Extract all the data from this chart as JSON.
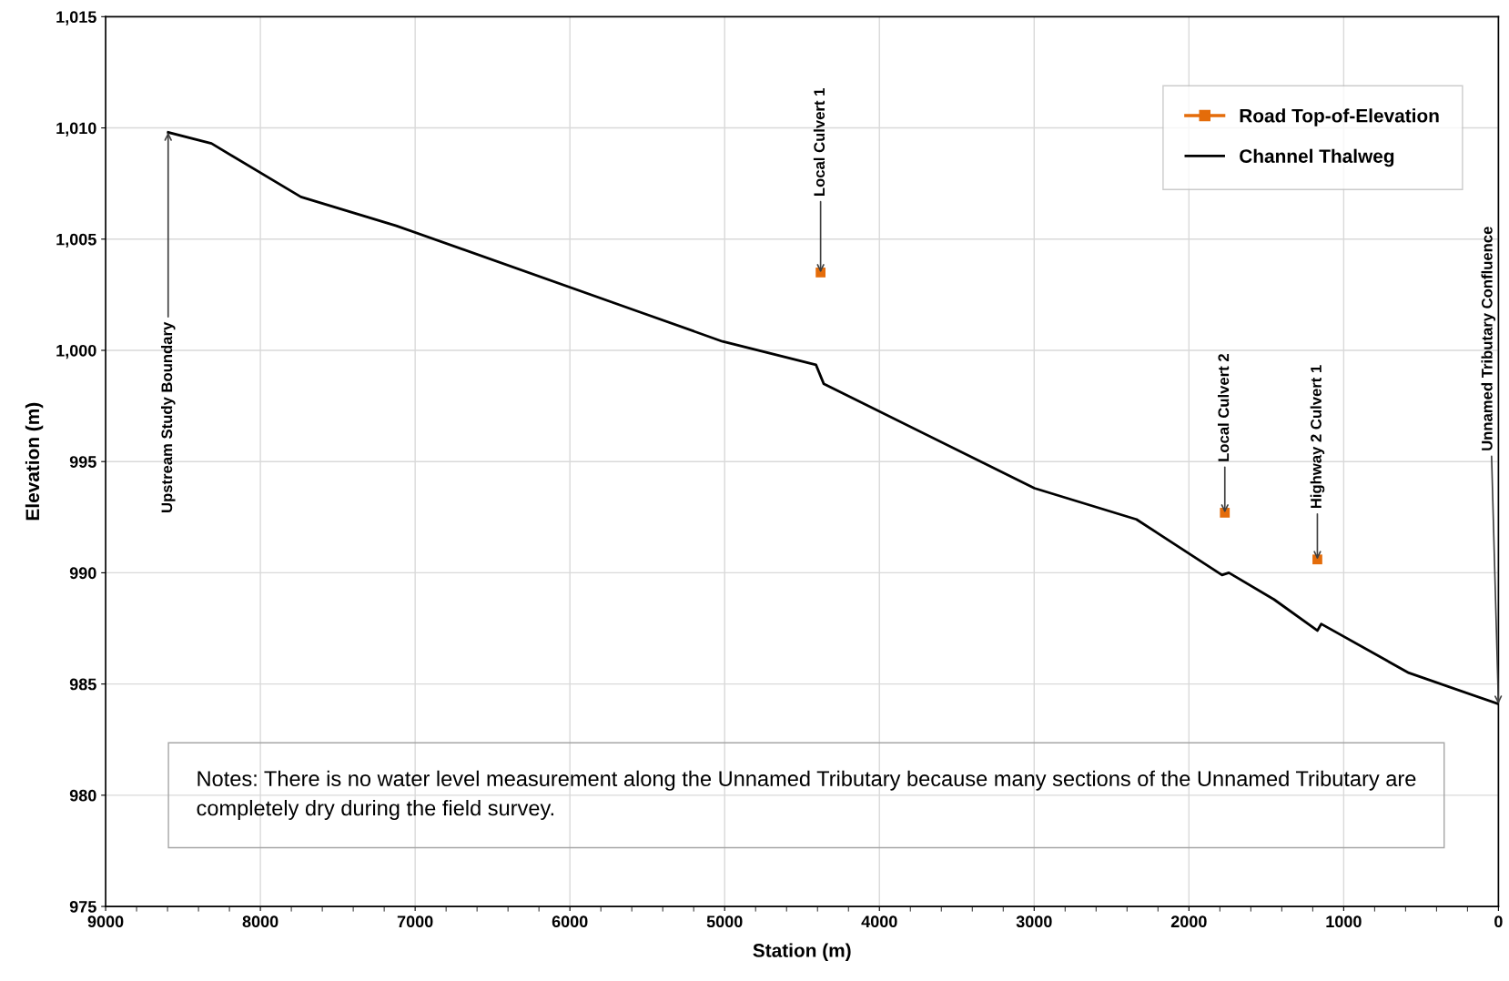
{
  "chart_data": {
    "type": "line",
    "xlabel": "Station (m)",
    "ylabel": "Elevation (m)",
    "xlim": [
      9000,
      0
    ],
    "xticks": [
      9000,
      8000,
      7000,
      6000,
      5000,
      4000,
      3000,
      2000,
      1000,
      0
    ],
    "ylim": [
      975,
      1015
    ],
    "yticks": [
      975,
      980,
      985,
      990,
      995,
      {
        "value": 1000,
        "label": "1,000"
      },
      {
        "value": 1005,
        "label": "1,005"
      },
      {
        "value": 1010,
        "label": "1,010"
      },
      {
        "value": 1015,
        "label": "1,015"
      }
    ],
    "grid": true,
    "legend": "top right",
    "series": [
      {
        "name": "Road Top-of-Elevation",
        "type": "scatter",
        "marker": "square",
        "color": "#e46c0a",
        "x": [
          4380,
          1768,
          1170
        ],
        "values": [
          1003.5,
          992.7,
          990.6
        ]
      },
      {
        "name": "Channel Thalweg",
        "color": "#000000",
        "x": [
          8596,
          8316,
          7738,
          7122,
          5580,
          5014,
          4410,
          4360,
          2998,
          2339,
          1786,
          1742,
          1450,
          1170,
          1145,
          579,
          0
        ],
        "values": [
          1009.8,
          1009.3,
          1006.9,
          1005.6,
          1001.8,
          1000.4,
          999.35,
          998.5,
          993.8,
          992.4,
          989.9,
          990.0,
          988.8,
          987.4,
          987.7,
          985.5,
          984.1
        ]
      }
    ],
    "annotations": [
      {
        "text": "Upstream Study Boundary",
        "x": 8596,
        "y": 1009.8
      },
      {
        "text": "Local Culvert 1",
        "x": 4380,
        "y": 1003.5
      },
      {
        "text": "Local Culvert 2",
        "x": 1768,
        "y": 992.7
      },
      {
        "text": "Highway 2 Culvert 1",
        "x": 1170,
        "y": 990.6
      },
      {
        "text": "Unnamed Tributary Confluence",
        "x": 0,
        "y": 984.1
      },
      "Notes: There is no water level measurement along the Unnamed Tributary because many sections of the Unnamed Tributary are completely dry during the field survey."
    ]
  }
}
